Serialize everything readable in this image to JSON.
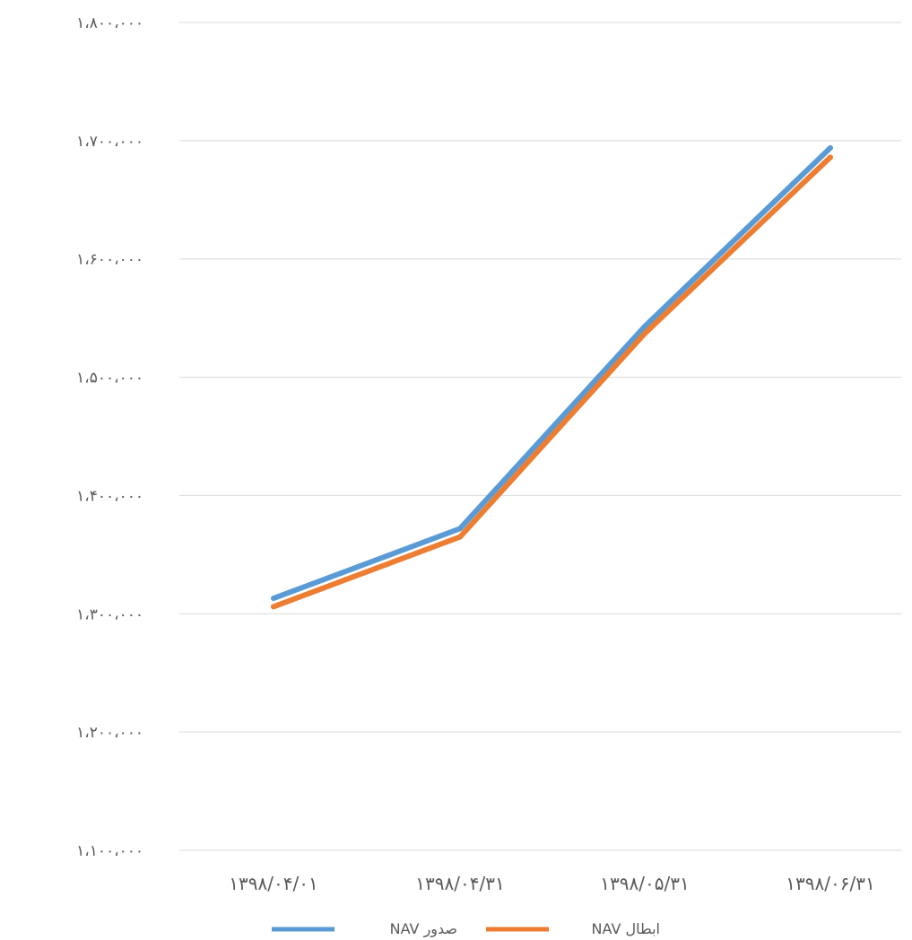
{
  "chart_data": {
    "type": "line",
    "title": "",
    "xlabel": "",
    "ylabel": "",
    "categories": [
      "۱۳۹۸/۰۴/۰۱",
      "۱۳۹۸/۰۴/۳۱",
      "۱۳۹۸/۰۵/۳۱",
      "۱۳۹۸/۰۶/۳۱"
    ],
    "ylim": [
      1100000,
      1800000
    ],
    "yticks": [
      1100000,
      1200000,
      1300000,
      1400000,
      1500000,
      1600000,
      1700000,
      1800000
    ],
    "ytick_labels": [
      "۱،۱۰۰،۰۰۰",
      "۱،۲۰۰،۰۰۰",
      "۱،۳۰۰،۰۰۰",
      "۱،۴۰۰،۰۰۰",
      "۱،۵۰۰،۰۰۰",
      "۱،۶۰۰،۰۰۰",
      "۱،۷۰۰،۰۰۰",
      "۱،۸۰۰،۰۰۰"
    ],
    "grid": true,
    "legend_position": "bottom",
    "series": [
      {
        "name": "NAV صدور",
        "color": "#5b9bd5",
        "values": [
          1313000,
          1372000,
          1543000,
          1694000
        ]
      },
      {
        "name": "NAV ابطال",
        "color": "#ed7d31",
        "values": [
          1306000,
          1365000,
          1537000,
          1686000
        ]
      }
    ]
  }
}
